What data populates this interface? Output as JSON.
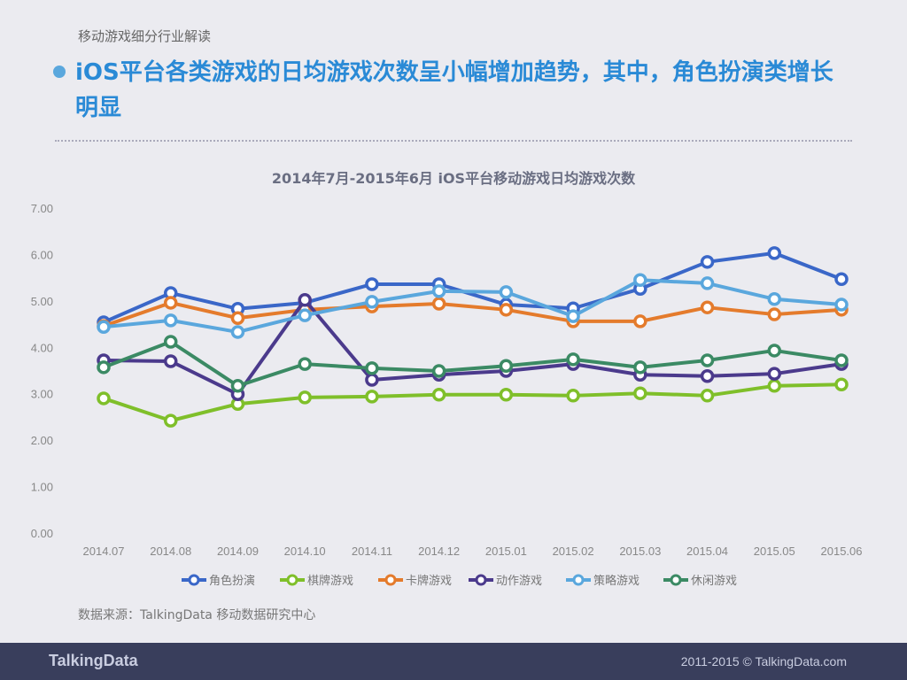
{
  "header": {
    "section": "移动游戏细分行业解读",
    "headline": "iOS平台各类游戏的日均游戏次数呈小幅增加趋势，其中，角色扮演类增长明显"
  },
  "source": "数据来源：TalkingData 移动数据研究中心",
  "footer": {
    "logo": "TalkingData",
    "copyright": "2011-2015 © TalkingData.com"
  },
  "chart_data": {
    "type": "line",
    "title": "2014年7月-2015年6月 iOS平台移动游戏日均游戏次数",
    "categories": [
      "2014.07",
      "2014.08",
      "2014.09",
      "2014.10",
      "2014.11",
      "2014.12",
      "2015.01",
      "2015.02",
      "2015.03",
      "2015.04",
      "2015.05",
      "2015.06"
    ],
    "ylim": [
      0,
      7
    ],
    "yticks": [
      "0.00",
      "1.00",
      "2.00",
      "3.00",
      "4.00",
      "5.00",
      "6.00",
      "7.00"
    ],
    "grid": false,
    "legend": "bottom",
    "series": [
      {
        "name": "角色扮演",
        "color": "#3a67c8",
        "values": [
          4.54,
          5.17,
          4.83,
          4.96,
          5.36,
          5.36,
          4.92,
          4.84,
          5.26,
          5.84,
          6.03,
          5.47
        ]
      },
      {
        "name": "棋牌游戏",
        "color": "#7fbf2a",
        "values": [
          2.9,
          2.42,
          2.78,
          2.92,
          2.94,
          2.98,
          2.98,
          2.96,
          3.01,
          2.96,
          3.17,
          3.2
        ]
      },
      {
        "name": "卡牌游戏",
        "color": "#e47b2c",
        "values": [
          4.46,
          4.96,
          4.63,
          4.81,
          4.88,
          4.94,
          4.81,
          4.56,
          4.56,
          4.86,
          4.71,
          4.81
        ]
      },
      {
        "name": "动作游戏",
        "color": "#4b3a8c",
        "values": [
          3.72,
          3.7,
          2.99,
          5.02,
          3.3,
          3.41,
          3.49,
          3.64,
          3.41,
          3.38,
          3.43,
          3.64
        ]
      },
      {
        "name": "策略游戏",
        "color": "#5aa7dd",
        "values": [
          4.44,
          4.58,
          4.33,
          4.69,
          4.98,
          5.21,
          5.19,
          4.67,
          5.45,
          5.38,
          5.04,
          4.92
        ]
      },
      {
        "name": "休闲游戏",
        "color": "#3b8a64",
        "values": [
          3.57,
          4.12,
          3.17,
          3.64,
          3.55,
          3.49,
          3.6,
          3.74,
          3.57,
          3.72,
          3.93,
          3.72
        ]
      }
    ]
  }
}
